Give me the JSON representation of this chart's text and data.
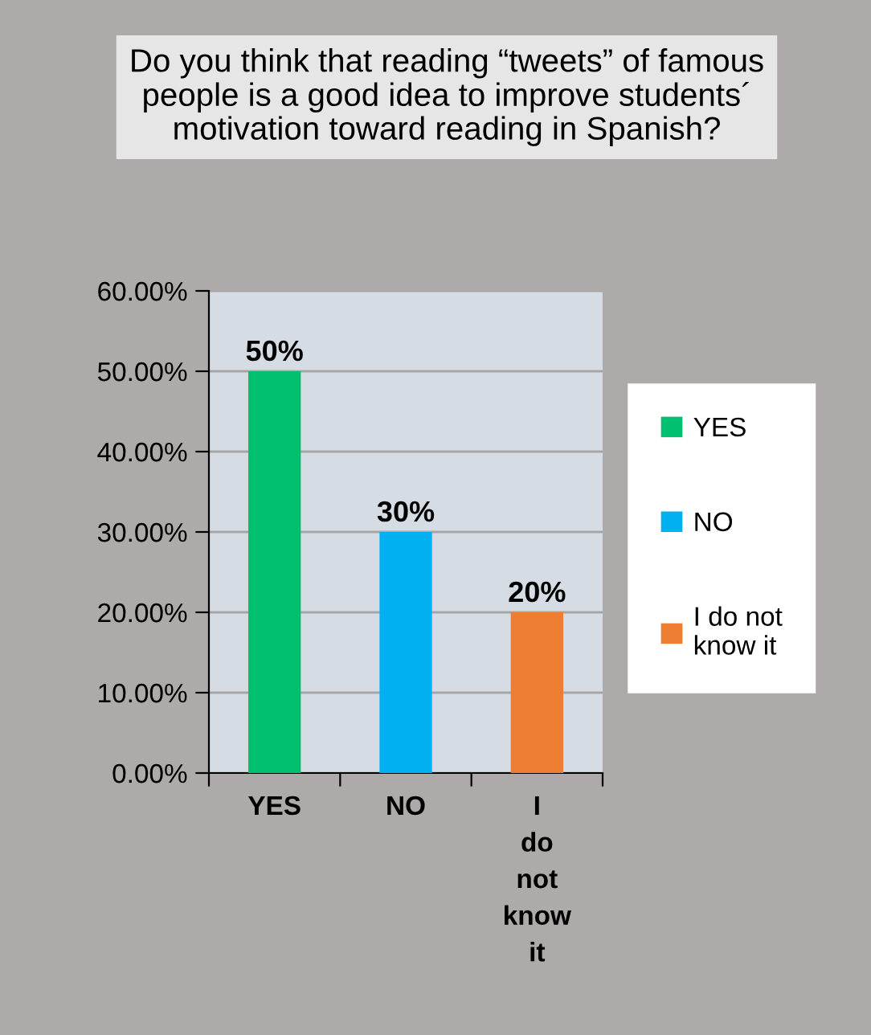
{
  "chart_data": {
    "type": "bar",
    "title": "Do you think that reading “tweets” of famous people is a good idea to improve students´ motivation toward reading in Spanish?",
    "categories": [
      "YES",
      "NO",
      "I do not know it"
    ],
    "series": [
      {
        "name": "YES",
        "color": "#00bf6f",
        "values": [
          50,
          null,
          null
        ],
        "value_labels": [
          "50%",
          null,
          null
        ]
      },
      {
        "name": "NO",
        "color": "#00b0f0",
        "values": [
          null,
          30,
          null
        ],
        "value_labels": [
          null,
          "30%",
          null
        ]
      },
      {
        "name": "I do not know it",
        "color": "#ed7d31",
        "values": [
          null,
          null,
          20
        ],
        "value_labels": [
          null,
          null,
          "20%"
        ]
      }
    ],
    "ylim": [
      0,
      60
    ],
    "yticks": [
      {
        "value": 0,
        "label": "0.00%"
      },
      {
        "value": 10,
        "label": "10.00%"
      },
      {
        "value": 20,
        "label": "20.00%"
      },
      {
        "value": 30,
        "label": "30.00%"
      },
      {
        "value": 40,
        "label": "40.00%"
      },
      {
        "value": 50,
        "label": "50.00%"
      },
      {
        "value": 60,
        "label": "60.00%"
      }
    ],
    "grid": "y",
    "legend": "right"
  }
}
